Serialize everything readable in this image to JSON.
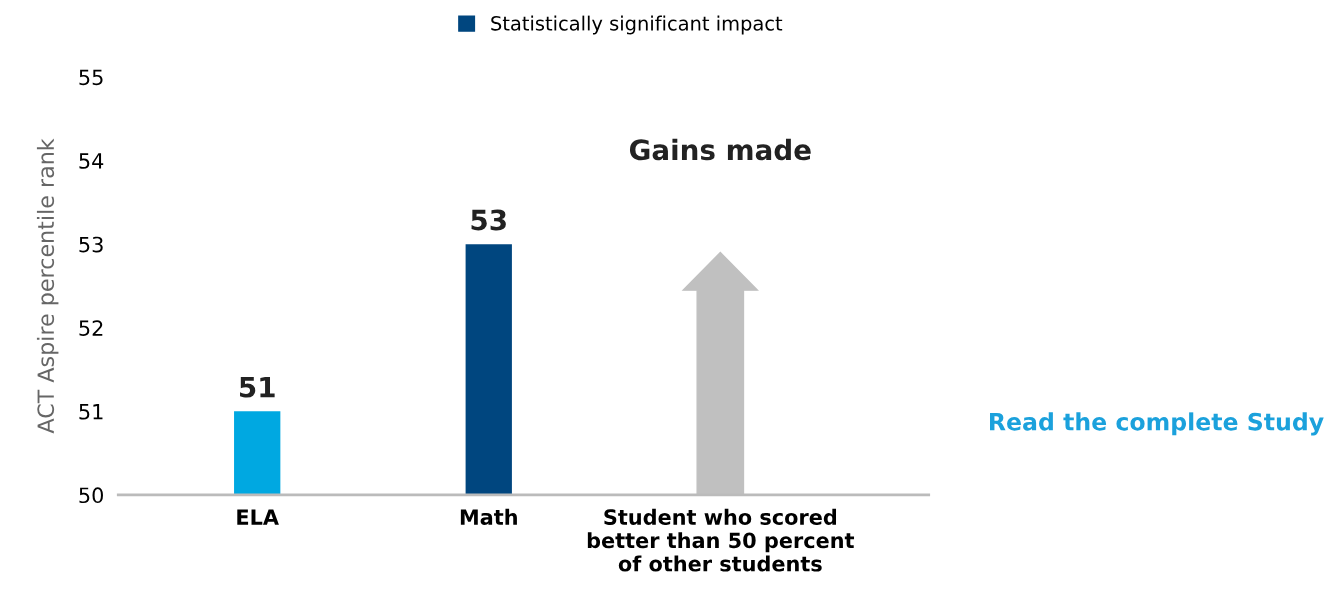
{
  "chart_data": {
    "type": "bar",
    "ylabel": "ACT Aspire percentile rank",
    "categories": [
      "ELA",
      "Math",
      "Student who scored\nbetter than 50 percent\nof other students"
    ],
    "series": [
      {
        "name": "Statistically significant impact",
        "color": "#00467f",
        "colors": [
          "#00a8e1",
          "#00467f",
          "#c0c0c0"
        ],
        "values": [
          51,
          53,
          null
        ]
      }
    ],
    "ylim": [
      50,
      55
    ],
    "yticks": [
      50,
      51,
      52,
      53,
      54,
      55
    ],
    "data_labels": true,
    "grid": false,
    "legend": "top",
    "annotations": [
      "Gains made",
      "Read the complete Study"
    ]
  }
}
